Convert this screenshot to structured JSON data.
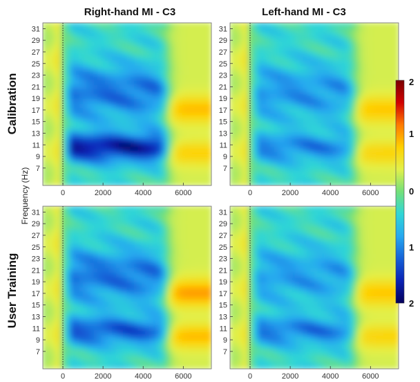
{
  "chart_data": {
    "type": "heatmap",
    "column_titles": [
      "Right-hand MI - C3",
      "Left-hand MI - C3"
    ],
    "row_titles": [
      "Calibration",
      "User Training"
    ],
    "ylabel": "Frequency (Hz)",
    "y_ticks": [
      "31",
      "29",
      "27",
      "25",
      "23",
      "21",
      "19",
      "17",
      "15",
      "13",
      "11",
      "9",
      "7"
    ],
    "x_ticks": [
      "0",
      "2000",
      "4000",
      "6000"
    ],
    "xlim": [
      -1000,
      7400
    ],
    "ylim": [
      4,
      32
    ],
    "colorbar": {
      "ticks": [
        "2",
        "1",
        "0",
        "1",
        "2"
      ],
      "stops": [
        "#7a0000",
        "#d10000",
        "#ff7a00",
        "#ffd100",
        "#e2f04a",
        "#73e07a",
        "#2fd6d6",
        "#26a8f0",
        "#1562d8",
        "#0a22b5",
        "#05005a"
      ]
    },
    "panels": [
      {
        "name": "Calibration Right-hand",
        "stim_onset": 0,
        "alpha_desync": -1.35,
        "beta_desync": -0.75,
        "rebound": 0.55
      },
      {
        "name": "Calibration Left-hand",
        "stim_onset": 0,
        "alpha_desync": -0.65,
        "beta_desync": -0.55,
        "rebound": 0.5
      },
      {
        "name": "User Training Right-hand",
        "stim_onset": 0,
        "alpha_desync": -0.9,
        "beta_desync": -0.75,
        "rebound": 0.7
      },
      {
        "name": "User Training Left-hand",
        "stim_onset": 0,
        "alpha_desync": -0.7,
        "beta_desync": -0.5,
        "rebound": 0.5
      }
    ]
  }
}
